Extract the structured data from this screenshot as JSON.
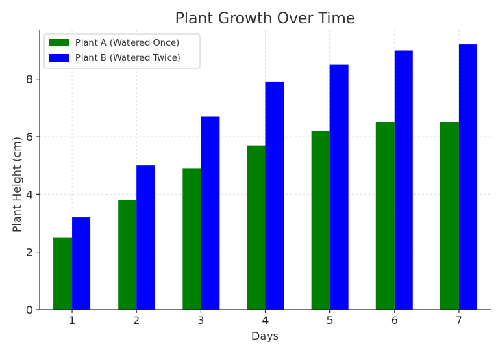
{
  "chart_data": {
    "type": "bar",
    "title": "Plant Growth Over Time",
    "xlabel": "Days",
    "ylabel": "Plant Height (cm)",
    "categories": [
      "1",
      "2",
      "3",
      "4",
      "5",
      "6",
      "7"
    ],
    "series": [
      {
        "name": "Plant A (Watered Once)",
        "color": "#008000",
        "values": [
          2.5,
          3.8,
          4.9,
          5.7,
          6.2,
          6.5,
          6.5
        ]
      },
      {
        "name": "Plant B (Watered Twice)",
        "color": "#0000ff",
        "values": [
          3.2,
          5.0,
          6.7,
          7.9,
          8.5,
          9.0,
          9.2
        ]
      }
    ],
    "ylim": [
      0,
      9.7
    ],
    "yticks": [
      0,
      2,
      4,
      6,
      8
    ],
    "grid": true,
    "legend": "top-left"
  }
}
